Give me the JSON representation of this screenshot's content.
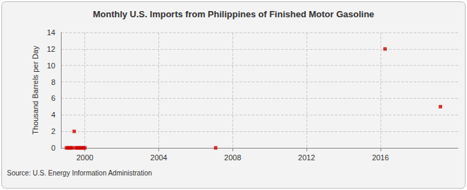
{
  "chart_data": {
    "type": "scatter",
    "title": "Monthly U.S. Imports from Philippines of Finished Motor Gasoline",
    "y_label": "Thousand Barrels per Day",
    "source": "Source: U.S. Energy Information Administration",
    "series": [
      {
        "name": "Finished Motor Gasoline",
        "color": "#cc0000",
        "marker": "square",
        "x": [
          1999.0,
          1999.08,
          1999.17,
          1999.25,
          1999.33,
          1999.42,
          1999.5,
          1999.58,
          1999.67,
          1999.75,
          1999.83,
          1999.92,
          2000.0,
          2007.08,
          2016.25,
          2019.25
        ],
        "values": [
          0,
          0,
          0,
          0,
          0,
          2,
          0,
          0,
          0,
          0,
          0,
          0,
          0,
          0,
          12,
          5
        ]
      }
    ],
    "xlim": [
      1998.7,
      2020.2
    ],
    "xticks": [
      2000,
      2004,
      2008,
      2012,
      2016
    ],
    "ylim": [
      0,
      14
    ],
    "yticks": [
      0,
      2,
      4,
      6,
      8,
      10,
      12,
      14
    ],
    "grid": true
  }
}
